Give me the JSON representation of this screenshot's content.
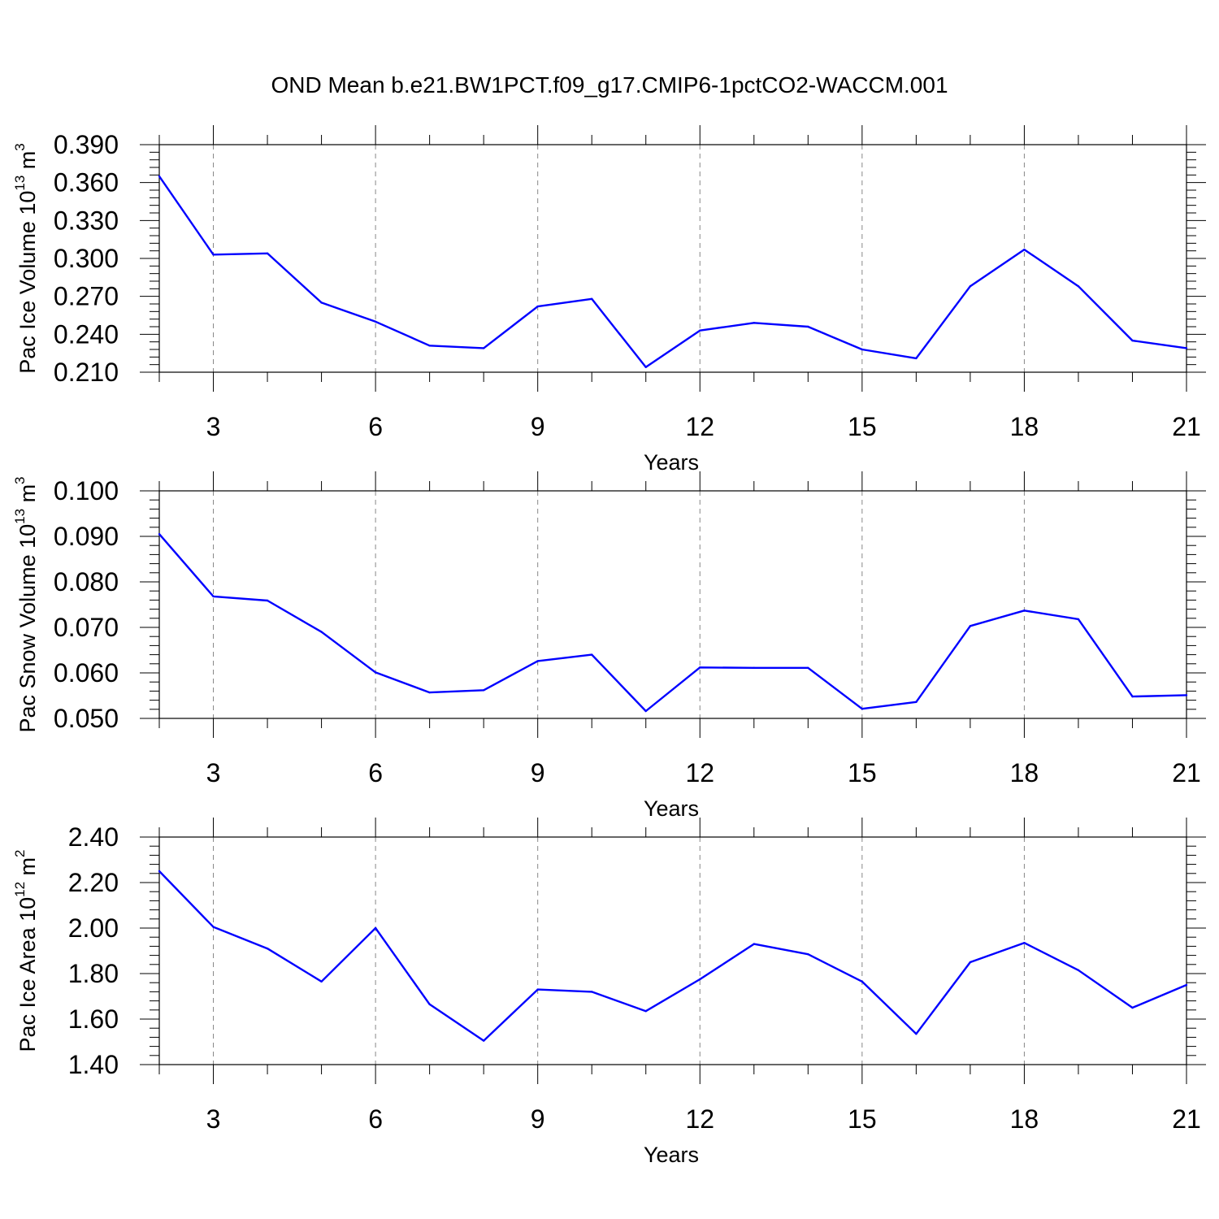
{
  "title": "OND Mean b.e21.BW1PCT.f09_g17.CMIP6-1pctCO2-WACCM.001",
  "colors": {
    "line": "#0000ff",
    "axis": "#000000",
    "grid": "#888888",
    "background": "#ffffff"
  },
  "chart_data": [
    {
      "type": "line",
      "xlabel": "Years",
      "ylabel": {
        "text": "Pac Ice Volume 10",
        "exponent": "13",
        "unit": " m",
        "unit_exponent": "3"
      },
      "xlim": [
        2,
        21
      ],
      "ylim": [
        0.21,
        0.39
      ],
      "x_ticks": [
        "3",
        "6",
        "9",
        "12",
        "15",
        "18",
        "21"
      ],
      "y_ticks": [
        "0.210",
        "0.240",
        "0.270",
        "0.300",
        "0.330",
        "0.360",
        "0.390"
      ],
      "grid": "vertical dashed at major x ticks",
      "x": [
        2,
        3,
        4,
        5,
        6,
        7,
        8,
        9,
        10,
        11,
        12,
        13,
        14,
        15,
        16,
        17,
        18,
        19,
        20,
        21
      ],
      "values": [
        0.365,
        0.303,
        0.304,
        0.265,
        0.25,
        0.231,
        0.229,
        0.262,
        0.268,
        0.214,
        0.243,
        0.249,
        0.246,
        0.228,
        0.221,
        0.278,
        0.307,
        0.278,
        0.235,
        0.229
      ]
    },
    {
      "type": "line",
      "xlabel": "Years",
      "ylabel": {
        "text": "Pac Snow Volume 10",
        "exponent": "13",
        "unit": " m",
        "unit_exponent": "3"
      },
      "xlim": [
        2,
        21
      ],
      "ylim": [
        0.05,
        0.1
      ],
      "x_ticks": [
        "3",
        "6",
        "9",
        "12",
        "15",
        "18",
        "21"
      ],
      "y_ticks": [
        "0.050",
        "0.060",
        "0.070",
        "0.080",
        "0.090",
        "0.100"
      ],
      "grid": "vertical dashed at major x ticks",
      "x": [
        2,
        3,
        4,
        5,
        6,
        7,
        8,
        9,
        10,
        11,
        12,
        13,
        14,
        15,
        16,
        17,
        18,
        19,
        20,
        21
      ],
      "values": [
        0.0905,
        0.0768,
        0.0759,
        0.069,
        0.0601,
        0.0557,
        0.0562,
        0.0626,
        0.064,
        0.0516,
        0.0612,
        0.0611,
        0.0611,
        0.0521,
        0.0536,
        0.0703,
        0.0737,
        0.0718,
        0.0548,
        0.0551
      ]
    },
    {
      "type": "line",
      "xlabel": "Years",
      "ylabel": {
        "text": "Pac Ice Area 10",
        "exponent": "12",
        "unit": " m",
        "unit_exponent": "2"
      },
      "xlim": [
        2,
        21
      ],
      "ylim": [
        1.4,
        2.4
      ],
      "x_ticks": [
        "3",
        "6",
        "9",
        "12",
        "15",
        "18",
        "21"
      ],
      "y_ticks": [
        "1.40",
        "1.60",
        "1.80",
        "2.00",
        "2.20",
        "2.40"
      ],
      "grid": "vertical dashed at major x ticks",
      "x": [
        2,
        3,
        4,
        5,
        6,
        7,
        8,
        9,
        10,
        11,
        12,
        13,
        14,
        15,
        16,
        17,
        18,
        19,
        20,
        21
      ],
      "values": [
        2.25,
        2.005,
        1.91,
        1.765,
        2.0,
        1.665,
        1.505,
        1.73,
        1.72,
        1.635,
        1.775,
        1.93,
        1.885,
        1.765,
        1.535,
        1.85,
        1.935,
        1.815,
        1.65,
        1.75
      ]
    }
  ]
}
